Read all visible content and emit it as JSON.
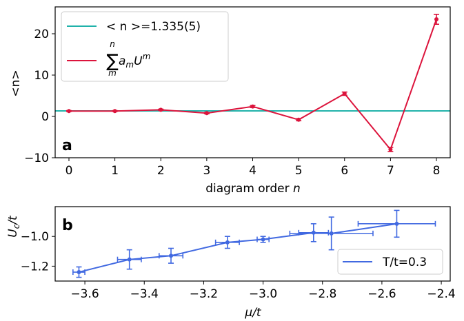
{
  "chart_data": [
    {
      "panel": "a",
      "type": "line",
      "panel_label": "a",
      "xlabel": "diagram order",
      "xlabel_italic": "n",
      "ylabel": "<n>",
      "xlim": [
        -0.3,
        8.3
      ],
      "ylim": [
        -10,
        26.5
      ],
      "xticks": [
        0,
        1,
        2,
        3,
        4,
        5,
        6,
        7,
        8
      ],
      "yticks": [
        -10,
        0,
        10,
        20
      ],
      "hline": {
        "y": 1.335,
        "color": "#20b2aa",
        "label": "< n >=1.335(5)"
      },
      "series": [
        {
          "name": "Σ a_m U^m",
          "color": "#dc143c",
          "x": [
            0,
            1,
            2,
            3,
            4,
            5,
            6,
            7,
            8
          ],
          "y": [
            1.3,
            1.3,
            1.6,
            0.8,
            2.4,
            -0.8,
            5.5,
            -8.0,
            23.5
          ],
          "yerr": [
            0.1,
            0.1,
            0.15,
            0.15,
            0.25,
            0.25,
            0.4,
            0.5,
            1.2
          ]
        }
      ],
      "legend_position": "upper-left",
      "legend_sum_symbol": "∑",
      "legend_sum_top": "n",
      "legend_sum_bottom": "m",
      "legend_sum_term": "a",
      "legend_sum_term_sub": "m",
      "legend_sum_base": "U",
      "legend_sum_exp": "m"
    },
    {
      "panel": "b",
      "type": "scatter",
      "panel_label": "b",
      "xlabel": "μ/t",
      "ylabel": "U",
      "ylabel_sub": "c",
      "ylabel_tail": "/t",
      "xlim": [
        -3.7,
        -2.37
      ],
      "ylim": [
        -1.3,
        -0.8
      ],
      "xticks": [
        -3.6,
        -3.4,
        -3.2,
        -3.0,
        -2.8,
        -2.6,
        -2.4
      ],
      "yticks": [
        -1.2,
        -1.0
      ],
      "series": [
        {
          "name": "T/t=0.3",
          "color": "#4169e1",
          "x": [
            -3.62,
            -3.45,
            -3.31,
            -3.12,
            -3.0,
            -2.83,
            -2.77,
            -2.55
          ],
          "y": [
            -1.24,
            -1.155,
            -1.13,
            -1.04,
            -1.02,
            -0.975,
            -0.98,
            -0.915
          ],
          "xerr": [
            0.02,
            0.04,
            0.04,
            0.04,
            0.02,
            0.05,
            0.14,
            0.13
          ],
          "yerr": [
            0.035,
            0.065,
            0.05,
            0.04,
            0.02,
            0.06,
            0.11,
            0.09
          ]
        }
      ],
      "legend_position": "lower-right"
    }
  ]
}
